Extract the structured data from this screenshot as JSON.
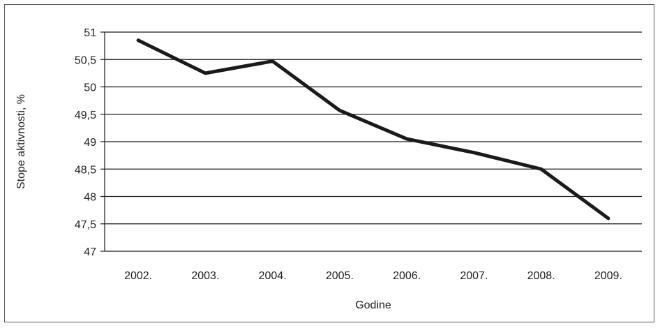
{
  "chart_data": {
    "type": "line",
    "title": "",
    "xlabel": "Godine",
    "ylabel": "Stope aktivnosti, %",
    "categories": [
      "2002.",
      "2003.",
      "2004.",
      "2005.",
      "2006.",
      "2007.",
      "2008.",
      "2009."
    ],
    "series": [
      {
        "values": [
          50.85,
          50.25,
          50.47,
          49.57,
          49.05,
          48.8,
          48.5,
          47.6
        ]
      }
    ],
    "ylim": [
      47,
      51
    ],
    "yticks": [
      47,
      47.5,
      48,
      48.5,
      49,
      49.5,
      50,
      50.5,
      51
    ],
    "ytick_labels": [
      "47",
      "47,5",
      "48",
      "48,5",
      "49",
      "49,5",
      "50",
      "50,5",
      "51"
    ],
    "grid": true,
    "line_color": "#1a1a1a"
  }
}
